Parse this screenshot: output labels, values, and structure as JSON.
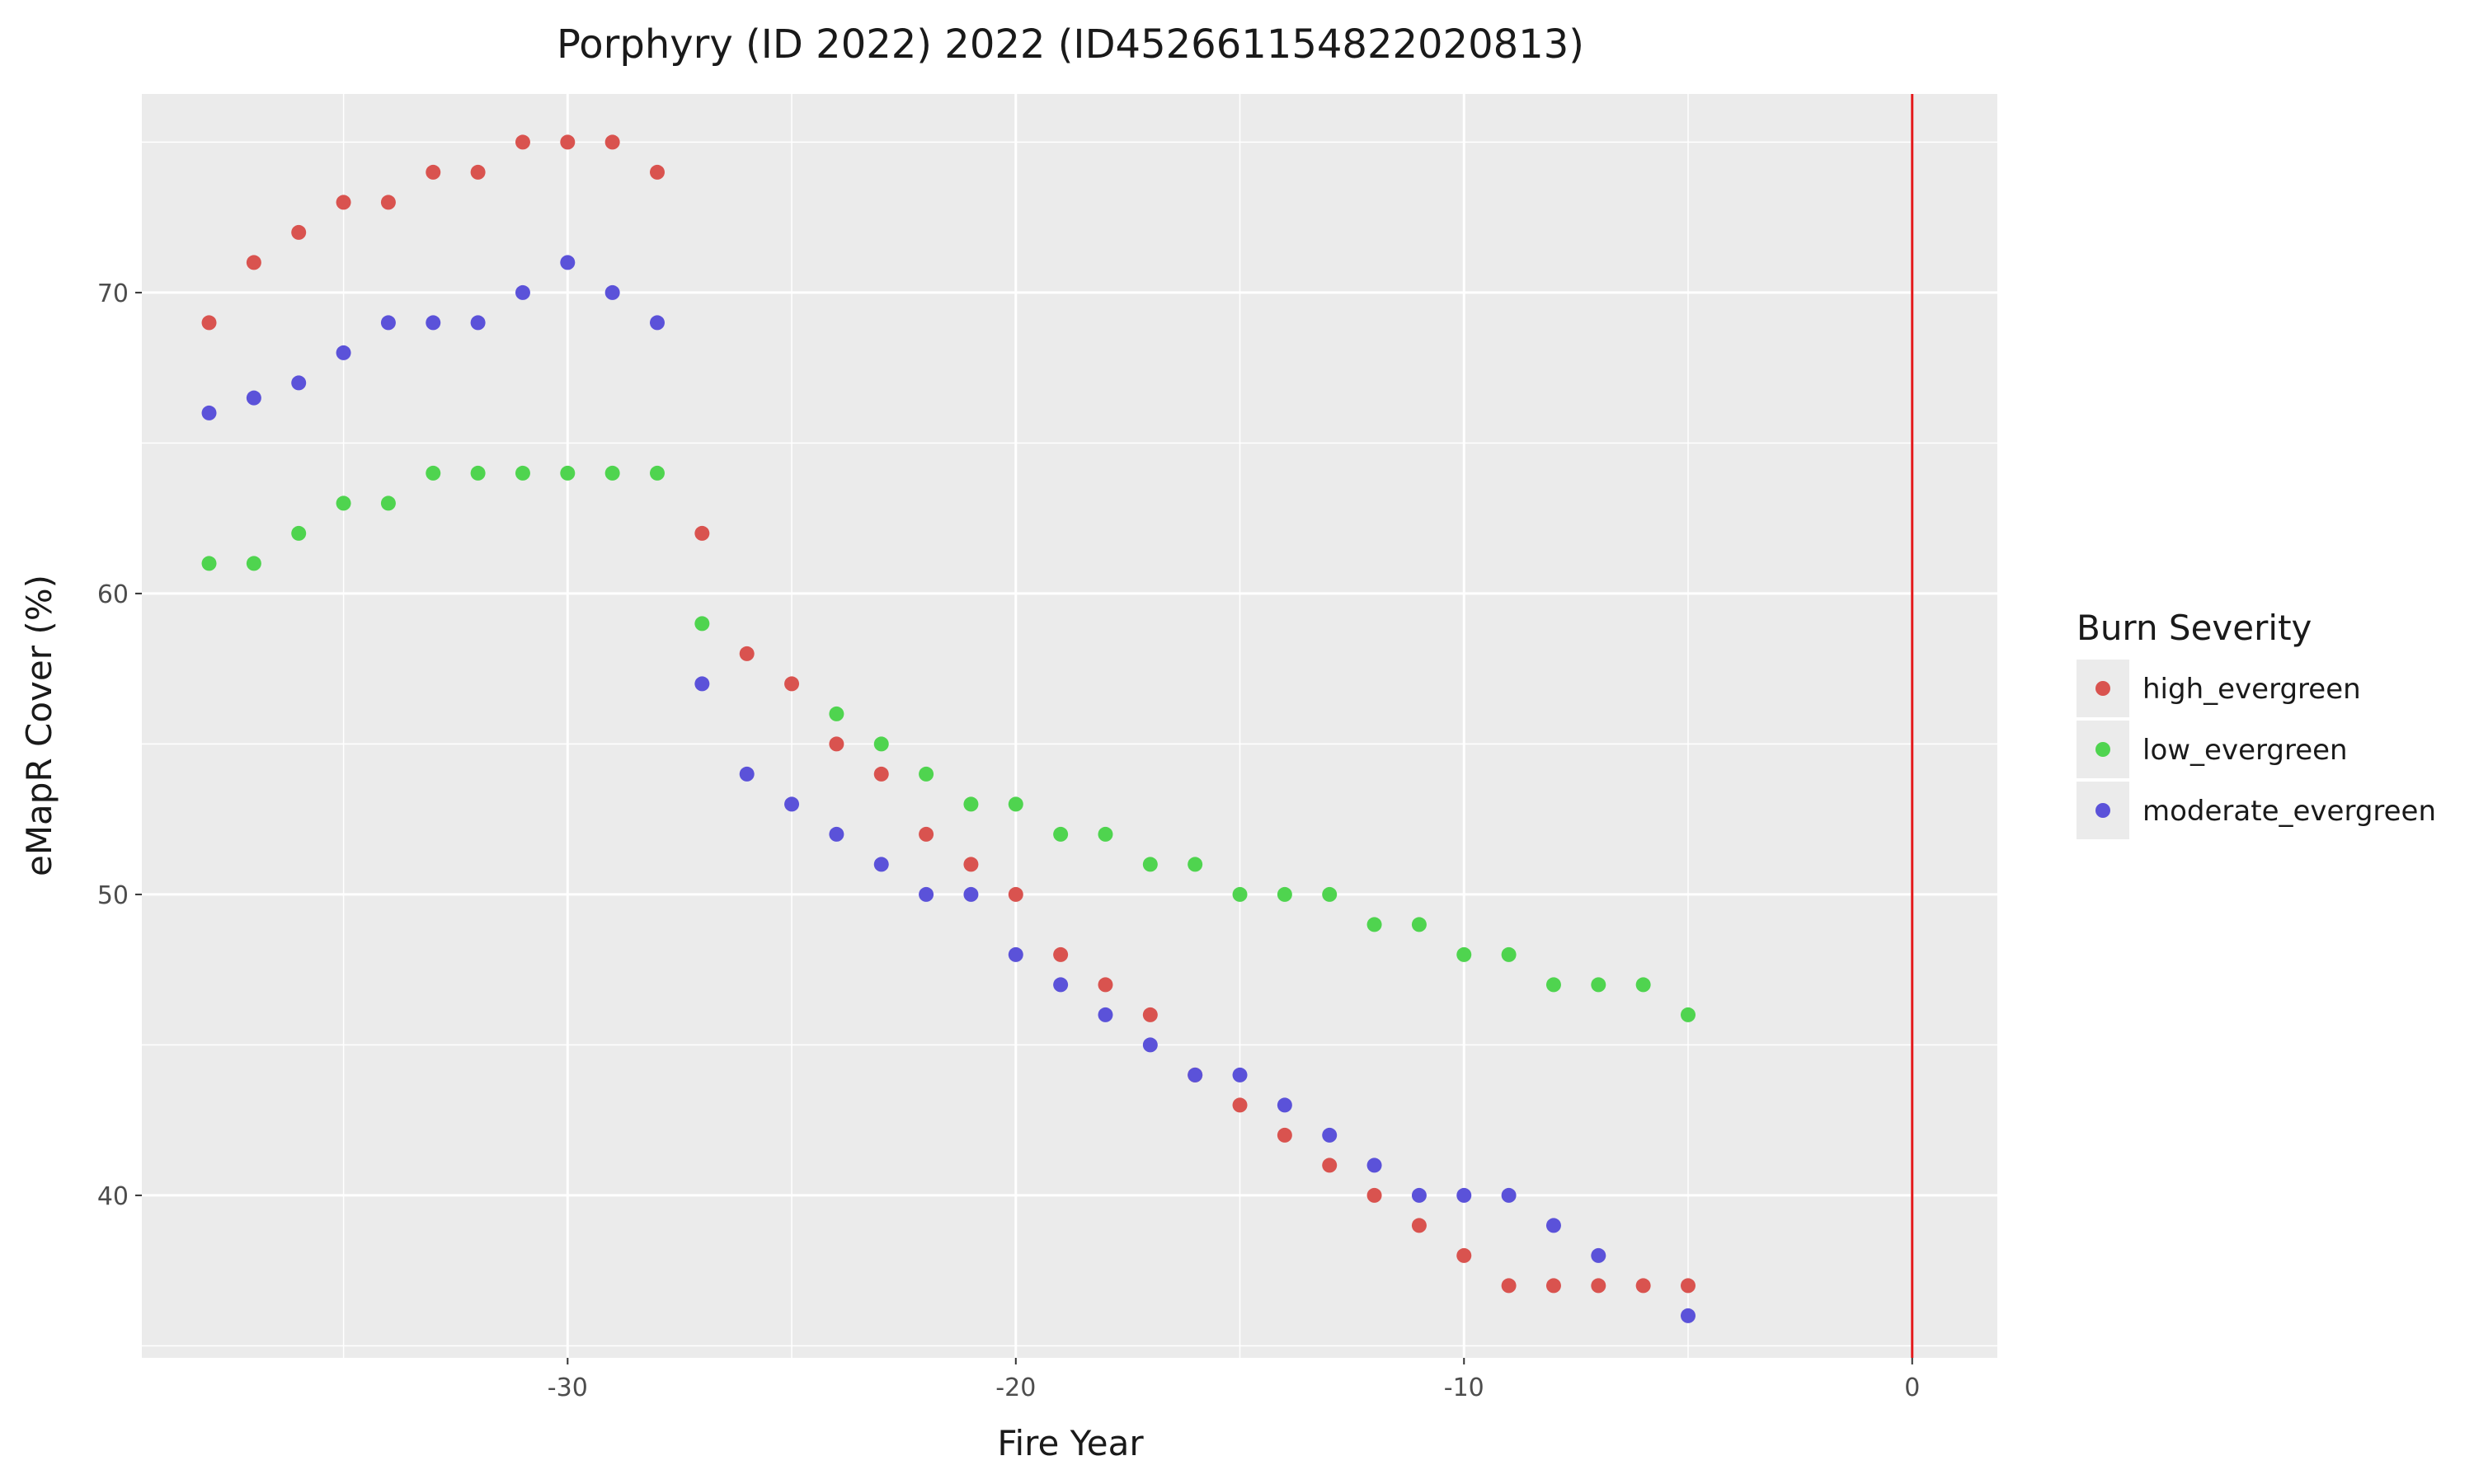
{
  "chart_data": {
    "type": "scatter",
    "title": "Porphyry (ID 2022) 2022 (ID452661154822020813)",
    "xlabel": "Fire Year",
    "ylabel": "eMapR Cover (%)",
    "xlim": [
      -39.5,
      1.9
    ],
    "ylim": [
      34.6,
      76.6
    ],
    "x_ticks": [
      -30,
      -20,
      -10,
      0
    ],
    "y_ticks": [
      40,
      50,
      60,
      70
    ],
    "grid": true,
    "vline": {
      "x": 0,
      "color": "#e41a1c"
    },
    "legend": {
      "title": "Burn Severity",
      "position": "right"
    },
    "series": [
      {
        "name": "high_evergreen",
        "color": "#d9534f",
        "points": [
          [
            -38,
            69
          ],
          [
            -37,
            71
          ],
          [
            -36,
            72
          ],
          [
            -35,
            73
          ],
          [
            -34,
            73
          ],
          [
            -33,
            74
          ],
          [
            -32,
            74
          ],
          [
            -31,
            75
          ],
          [
            -30,
            75
          ],
          [
            -29,
            75
          ],
          [
            -28,
            74
          ],
          [
            -27,
            62
          ],
          [
            -26,
            58
          ],
          [
            -25,
            57
          ],
          [
            -24,
            55
          ],
          [
            -23,
            54
          ],
          [
            -22,
            52
          ],
          [
            -21,
            51
          ],
          [
            -20,
            50
          ],
          [
            -19,
            48
          ],
          [
            -18,
            47
          ],
          [
            -17,
            46
          ],
          [
            -16,
            44
          ],
          [
            -15,
            43
          ],
          [
            -14,
            42
          ],
          [
            -13,
            41
          ],
          [
            -12,
            40
          ],
          [
            -11,
            39
          ],
          [
            -10,
            38
          ],
          [
            -9,
            37
          ],
          [
            -8,
            37
          ],
          [
            -7,
            37
          ],
          [
            -6,
            37
          ],
          [
            -5,
            37
          ]
        ]
      },
      {
        "name": "low_evergreen",
        "color": "#4fd44f",
        "points": [
          [
            -38,
            61
          ],
          [
            -37,
            61
          ],
          [
            -36,
            62
          ],
          [
            -35,
            63
          ],
          [
            -34,
            63
          ],
          [
            -33,
            64
          ],
          [
            -32,
            64
          ],
          [
            -31,
            64
          ],
          [
            -30,
            64
          ],
          [
            -29,
            64
          ],
          [
            -28,
            64
          ],
          [
            -27,
            59
          ],
          [
            -24,
            56
          ],
          [
            -23,
            55
          ],
          [
            -22,
            54
          ],
          [
            -21,
            53
          ],
          [
            -20,
            53
          ],
          [
            -19,
            52
          ],
          [
            -18,
            52
          ],
          [
            -17,
            51
          ],
          [
            -16,
            51
          ],
          [
            -15,
            50
          ],
          [
            -14,
            50
          ],
          [
            -13,
            50
          ],
          [
            -12,
            49
          ],
          [
            -11,
            49
          ],
          [
            -10,
            48
          ],
          [
            -9,
            48
          ],
          [
            -8,
            47
          ],
          [
            -7,
            47
          ],
          [
            -6,
            47
          ],
          [
            -5,
            46
          ]
        ]
      },
      {
        "name": "moderate_evergreen",
        "color": "#5b52d9",
        "points": [
          [
            -38,
            66
          ],
          [
            -37,
            66.5
          ],
          [
            -36,
            67
          ],
          [
            -35,
            68
          ],
          [
            -34,
            69
          ],
          [
            -33,
            69
          ],
          [
            -32,
            69
          ],
          [
            -31,
            70
          ],
          [
            -30,
            71
          ],
          [
            -29,
            70
          ],
          [
            -28,
            69
          ],
          [
            -27,
            57
          ],
          [
            -26,
            54
          ],
          [
            -25,
            53
          ],
          [
            -24,
            52
          ],
          [
            -23,
            51
          ],
          [
            -22,
            50
          ],
          [
            -21,
            50
          ],
          [
            -20,
            48
          ],
          [
            -19,
            47
          ],
          [
            -18,
            46
          ],
          [
            -17,
            45
          ],
          [
            -16,
            44
          ],
          [
            -15,
            44
          ],
          [
            -14,
            43
          ],
          [
            -13,
            42
          ],
          [
            -12,
            41
          ],
          [
            -11,
            40
          ],
          [
            -10,
            40
          ],
          [
            -9,
            40
          ],
          [
            -8,
            39
          ],
          [
            -7,
            38
          ],
          [
            -5,
            36
          ]
        ]
      }
    ]
  }
}
